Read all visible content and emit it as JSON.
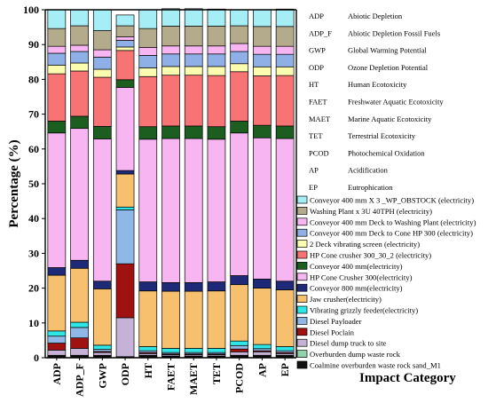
{
  "chart_data": {
    "type": "bar",
    "stacked": true,
    "ylabel": "Percentage (%)",
    "xlabel": "Impact Category",
    "ylim": [
      0,
      100
    ],
    "yticks": [
      0,
      10,
      20,
      30,
      40,
      50,
      60,
      70,
      80,
      90,
      100
    ],
    "grid": false,
    "legend_position": "right",
    "categories": [
      "ADP",
      "ADP_F",
      "GWP",
      "ODP",
      "HT",
      "FAET",
      "MAET",
      "TET",
      "PCOD",
      "AP",
      "EP"
    ],
    "abbreviations": [
      {
        "code": "ADP",
        "name": "Abiotic Depletion"
      },
      {
        "code": "ADP_F",
        "name": "Abiotic Depletion Fossil Fuels"
      },
      {
        "code": "GWP",
        "name": "Global Warming Potential"
      },
      {
        "code": "ODP",
        "name": "Ozone Depletion Potential"
      },
      {
        "code": "HT",
        "name": "Human Ecotoxicity"
      },
      {
        "code": "FAET",
        "name": "Freshwater Aquatic Ecotoxicity"
      },
      {
        "code": "MAET",
        "name": "Marine Aquatic Ecotoxicity"
      },
      {
        "code": "TET",
        "name": "Terrestrial Ecotoxicity"
      },
      {
        "code": "PCOD",
        "name": "Photochemical Oxidation"
      },
      {
        "code": "AP",
        "name": "Acidification"
      },
      {
        "code": "EP",
        "name": "Eutrophication"
      }
    ],
    "series": [
      {
        "name": "Coalmine overburden waste rock sand_M1",
        "color": "#111111",
        "values": [
          0.5,
          0.5,
          0.5,
          0.2,
          0.5,
          0.3,
          0.3,
          0.3,
          0.5,
          0.5,
          0.5
        ]
      },
      {
        "name": "Overburden dump waste rock",
        "color": "#8fd4a8",
        "values": [
          0.2,
          0.2,
          0.2,
          0.1,
          0.2,
          0.2,
          0.2,
          0.2,
          0.2,
          0.2,
          0.2
        ]
      },
      {
        "name": "Diesel dump truck to site",
        "color": "#c6b2d6",
        "values": [
          1.5,
          2.0,
          0.8,
          11.2,
          0.5,
          0.4,
          0.4,
          0.4,
          1.0,
          1.0,
          0.5
        ]
      },
      {
        "name": "Diesel Poclain",
        "color": "#a01212",
        "values": [
          2.0,
          3.0,
          0.3,
          15.5,
          0.3,
          0.2,
          0.2,
          0.2,
          0.8,
          0.3,
          0.3
        ]
      },
      {
        "name": "Diesel Payloader",
        "color": "#8fb8e6",
        "values": [
          2.0,
          3.0,
          0.6,
          15.5,
          0.5,
          0.4,
          0.4,
          0.4,
          1.0,
          0.6,
          0.5
        ]
      },
      {
        "name": "Vibrating grizzly feeder(electricity)",
        "color": "#2ee6e6",
        "values": [
          1.5,
          1.5,
          1.2,
          0.8,
          1.2,
          1.2,
          1.2,
          1.2,
          1.3,
          1.2,
          1.2
        ]
      },
      {
        "name": "Jaw crusher(electricity)",
        "color": "#f7c06e",
        "values": [
          16.0,
          15.5,
          16.2,
          9.5,
          16.0,
          16.4,
          16.4,
          16.5,
          16.2,
          16.2,
          16.3
        ]
      },
      {
        "name": "Conveyor 800 mm(electricity)",
        "color": "#1e2a78",
        "values": [
          2.2,
          2.3,
          2.2,
          1.0,
          2.6,
          2.5,
          2.5,
          2.6,
          2.6,
          2.6,
          2.5
        ]
      },
      {
        "name": "HP Cone Crusher 300(electricity)",
        "color": "#f7b6f2",
        "values": [
          38.7,
          37.9,
          40.9,
          23.9,
          41.0,
          41.4,
          41.4,
          41.0,
          41.0,
          40.6,
          41.0
        ]
      },
      {
        "name": "Conveyor 400 mm(electricity)",
        "color": "#1b5e20",
        "values": [
          3.4,
          3.5,
          3.6,
          2.2,
          3.6,
          3.6,
          3.6,
          3.6,
          3.4,
          3.6,
          3.6
        ]
      },
      {
        "name": "HP Cone crusher 300_30_2 (electricity)",
        "color": "#f87474",
        "values": [
          13.6,
          13.0,
          14.1,
          8.4,
          14.4,
          14.6,
          14.6,
          14.7,
          14.2,
          14.2,
          14.5
        ]
      },
      {
        "name": "2 Deck vibrating screen (electricity)",
        "color": "#fcfcb0",
        "values": [
          2.5,
          2.3,
          2.3,
          1.0,
          2.5,
          2.5,
          2.5,
          2.6,
          2.3,
          2.6,
          2.5
        ]
      },
      {
        "name": "Conveyor 400 mm Deck to Cone HP 300 (electricity)",
        "color": "#8fb0e6",
        "values": [
          3.4,
          3.3,
          3.5,
          1.9,
          3.6,
          3.6,
          3.6,
          3.6,
          3.5,
          3.6,
          3.6
        ]
      },
      {
        "name": "Conveyor 400 mm Deck to Washing Plant (electricity)",
        "color": "#f7b6f2",
        "values": [
          2.0,
          1.8,
          2.1,
          1.0,
          2.3,
          2.3,
          2.3,
          2.3,
          2.3,
          2.3,
          2.3
        ]
      },
      {
        "name": "Washing Plant x 3U 40TPH (electricity)",
        "color": "#b3ab8c",
        "values": [
          5.1,
          5.6,
          5.5,
          3.2,
          5.4,
          5.7,
          5.7,
          5.7,
          5.1,
          5.7,
          5.7
        ]
      },
      {
        "name": "Conveyor 400 mm X 3 _WP_OBSTOCK (electricity)",
        "color": "#a6eef5",
        "values": [
          5.4,
          4.6,
          6.0,
          3.1,
          5.4,
          5.0,
          5.0,
          4.9,
          4.6,
          4.8,
          5.0
        ]
      }
    ]
  }
}
